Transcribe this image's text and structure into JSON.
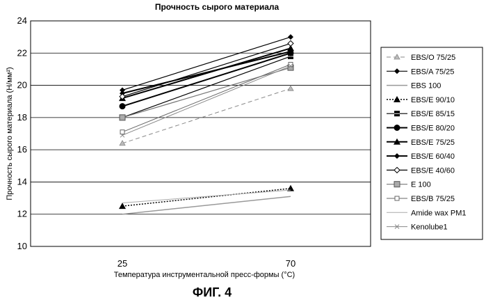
{
  "chart_data": {
    "type": "line",
    "title": "Прочность сырого материала",
    "xlabel": "Температура инструментальной пресс-формы (°C)",
    "ylabel": "Прочность сырого материала (Н/мм²)",
    "categories": [
      "25",
      "70"
    ],
    "ylim": [
      10,
      24
    ],
    "yticks": [
      "10",
      "12",
      "14",
      "16",
      "18",
      "20",
      "22",
      "24"
    ],
    "grid": true,
    "legend_position": "right",
    "series": [
      {
        "name": "EBS/O 75/25",
        "values": [
          16.4,
          19.8
        ],
        "color": "#888888",
        "marker": "triangle-open",
        "dash": "6,4",
        "width": 1
      },
      {
        "name": "EBS/A 75/25",
        "values": [
          19.7,
          23.0
        ],
        "color": "#000000",
        "marker": "diamond",
        "dash": "",
        "width": 1.2
      },
      {
        "name": "EBS 100",
        "values": [
          12.0,
          13.1
        ],
        "color": "#999999",
        "marker": "none",
        "dash": "",
        "width": 1.5
      },
      {
        "name": "EBS/E 90/10",
        "values": [
          12.5,
          13.6
        ],
        "color": "#000000",
        "marker": "triangle",
        "dash": "2,2",
        "width": 1.5
      },
      {
        "name": "EBS/E 85/15",
        "values": [
          18.0,
          21.8
        ],
        "color": "#000000",
        "marker": "square-cross",
        "dash": "",
        "width": 1.2
      },
      {
        "name": "EBS/E 80/20",
        "values": [
          18.7,
          22.0
        ],
        "color": "#000000",
        "marker": "circle",
        "dash": "",
        "width": 2
      },
      {
        "name": "EBS/E 75/25",
        "values": [
          19.2,
          22.3
        ],
        "color": "#000000",
        "marker": "triangle",
        "dash": "",
        "width": 2
      },
      {
        "name": "EBS/E 60/40",
        "values": [
          19.5,
          22.1
        ],
        "color": "#000000",
        "marker": "diamond",
        "dash": "",
        "width": 2
      },
      {
        "name": "EBS/E 40/60",
        "values": [
          19.3,
          22.6
        ],
        "color": "#000000",
        "marker": "diamond-open",
        "dash": "",
        "width": 1.2
      },
      {
        "name": "E 100",
        "values": [
          18.0,
          21.1
        ],
        "color": "#777777",
        "marker": "square-gray",
        "dash": "",
        "width": 1.2
      },
      {
        "name": "EBS/B 75/25",
        "values": [
          17.1,
          21.3
        ],
        "color": "#666666",
        "marker": "square-open",
        "dash": "",
        "width": 1
      },
      {
        "name": "Amide wax PM1",
        "values": [
          12.7,
          13.5
        ],
        "color": "#aaaaaa",
        "marker": "none",
        "dash": "",
        "width": 1
      },
      {
        "name": "Kenolube1",
        "values": [
          16.9,
          21.2
        ],
        "color": "#888888",
        "marker": "x",
        "dash": "",
        "width": 1
      }
    ]
  },
  "caption": "ФИГ. 4"
}
